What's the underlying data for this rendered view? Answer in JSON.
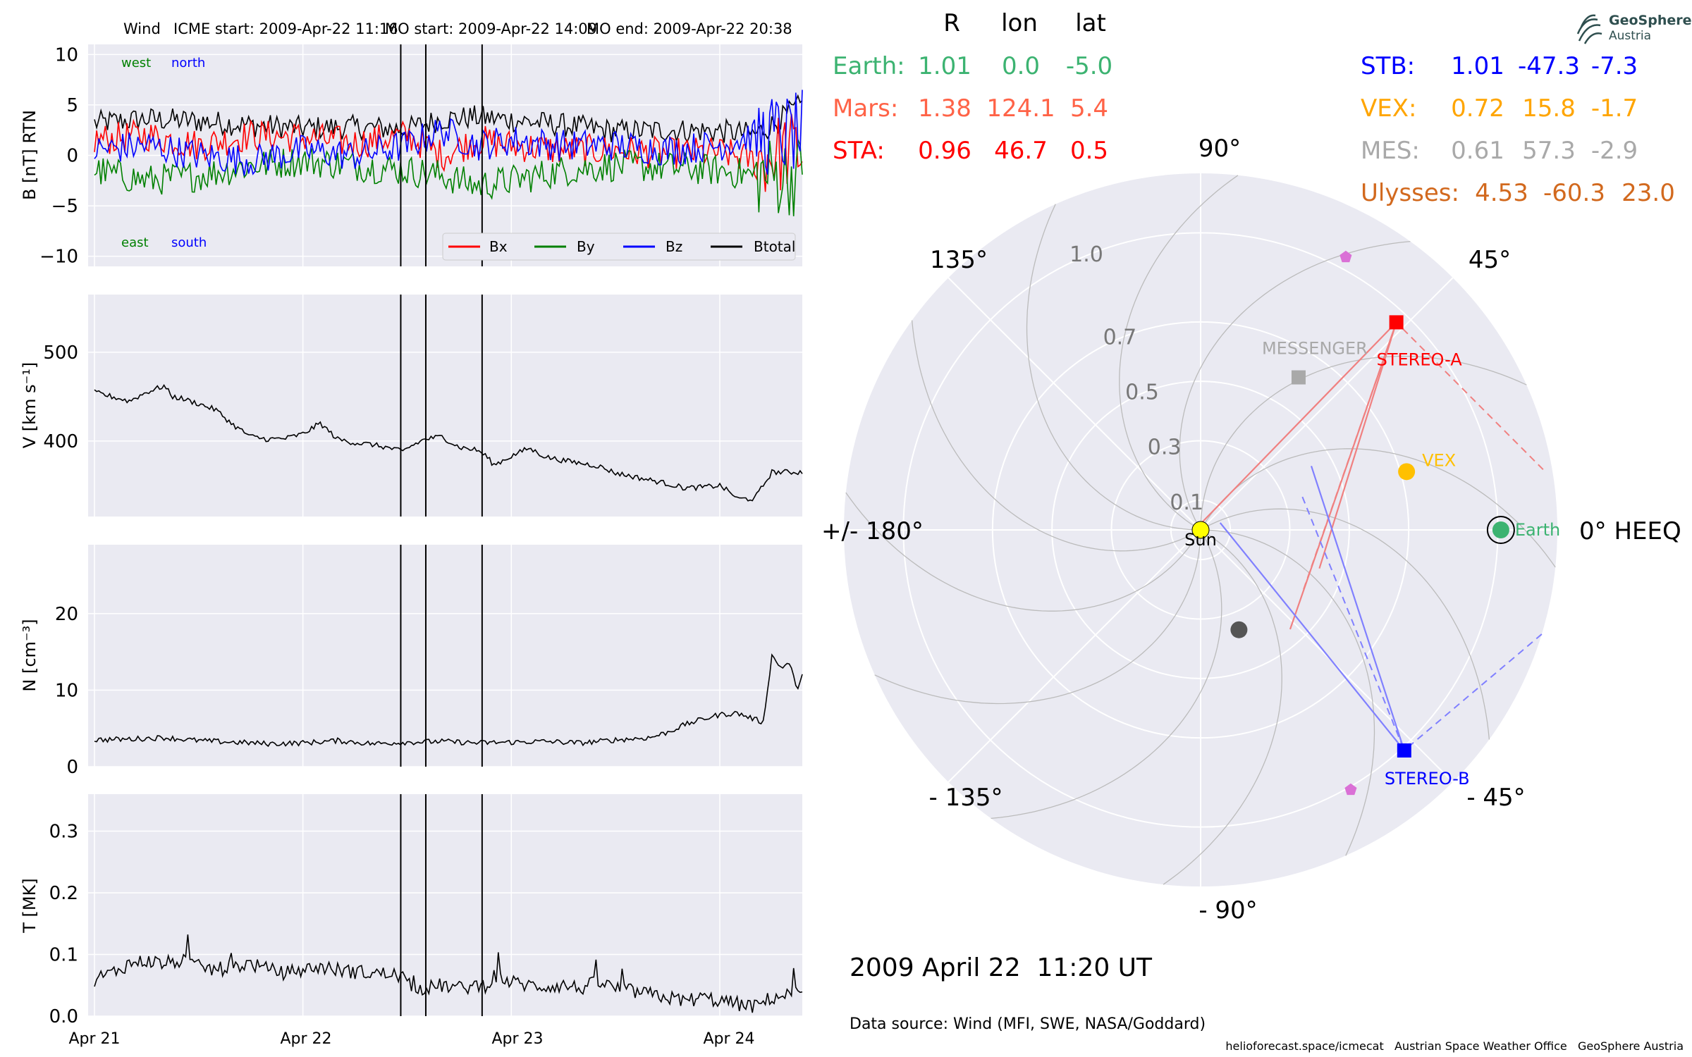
{
  "title": {
    "spacecraft": "Wind",
    "icme_start": "ICME start: 2009-Apr-22 11:16",
    "mo_start": "MO start: 2009-Apr-22 14:09",
    "mo_end": "MO end: 2009-Apr-22 20:38"
  },
  "logo": {
    "line1": "GeoSphere",
    "line2": "Austria",
    "icon": "geosphere-logo-icon"
  },
  "timestamp": "2009 April 22  11:20 UT",
  "data_source": "Data source: Wind (MFI, SWE, NASA/Goddard)",
  "credits": "helioforecast.space/icmecat   Austrian Space Weather Office   GeoSphere Austria",
  "position_table": {
    "headers": [
      "R",
      "lon",
      "lat"
    ],
    "left_rows": [
      {
        "name": "Earth:",
        "R": "1.01",
        "lon": "0.0",
        "lat": "-5.0",
        "color": "#3cb371"
      },
      {
        "name": "Mars:",
        "R": "1.38",
        "lon": "124.1",
        "lat": "5.4",
        "color": "#ff6347"
      },
      {
        "name": "STA:",
        "R": "0.96",
        "lon": "46.7",
        "lat": "0.5",
        "color": "#ff0000"
      }
    ],
    "right_rows": [
      {
        "name": "STB:",
        "R": "1.01",
        "lon": "-47.3",
        "lat": "-7.3",
        "color": "#0000ff"
      },
      {
        "name": "VEX:",
        "R": "0.72",
        "lon": "15.8",
        "lat": "-1.7",
        "color": "#ffa500"
      },
      {
        "name": "MES:",
        "R": "0.61",
        "lon": "57.3",
        "lat": "-2.9",
        "color": "#a9a9a9"
      },
      {
        "name": "Ulysses:",
        "R": "4.53",
        "lon": "-60.3",
        "lat": "23.0",
        "color": "#d2691e"
      }
    ]
  },
  "chart_data": [
    {
      "type": "line",
      "panel": "B",
      "ylabel": "B [nT] RTN",
      "ylim": [
        -11,
        11
      ],
      "yticks": [
        "10",
        "5",
        "0",
        "−5",
        "−10"
      ],
      "ytick_values": [
        10,
        5,
        0,
        -5,
        -10
      ],
      "x_ticks": [
        "Apr 21",
        "Apr 22",
        "Apr 23",
        "Apr 24"
      ],
      "x_range": [
        "2009-04-21 00:00",
        "2009-04-24 09:30"
      ],
      "event_lines": [
        "2009-04-22 11:16",
        "2009-04-22 14:09",
        "2009-04-22 20:38"
      ],
      "annotations": {
        "west": {
          "text": "west",
          "color": "#008000"
        },
        "north": {
          "text": "north",
          "color": "#0000ff"
        },
        "east": {
          "text": "east",
          "color": "#008000"
        },
        "south": {
          "text": "south",
          "color": "#0000ff"
        }
      },
      "legend": [
        {
          "name": "Bx",
          "color": "#ff0000"
        },
        {
          "name": "By",
          "color": "#008000"
        },
        {
          "name": "Bz",
          "color": "#0000ff"
        },
        {
          "name": "Btotal",
          "color": "#000000"
        }
      ],
      "series": [
        {
          "name": "Btotal",
          "color": "#000000",
          "x_hours": [
            0,
            6,
            12,
            18,
            24,
            30,
            36,
            40,
            44,
            48,
            54,
            60,
            66,
            72,
            76,
            78,
            80,
            82,
            84,
            86,
            88,
            90,
            92,
            93.5
          ],
          "values": [
            3.2,
            3.6,
            3.4,
            3.0,
            2.7,
            2.8,
            2.6,
            3.6,
            3.8,
            3.5,
            3.0,
            2.4,
            2.5,
            2.4,
            2.1,
            3.0,
            4.2,
            5.3,
            5.5,
            5.0,
            5.4,
            5.1,
            5.0,
            4.6
          ]
        },
        {
          "name": "Bx",
          "color": "#ff0000",
          "x_hours": [
            0,
            6,
            12,
            18,
            24,
            30,
            36,
            40,
            44,
            48,
            54,
            60,
            66,
            72,
            76,
            80,
            84,
            88,
            92,
            93.5
          ],
          "values": [
            1.5,
            2.0,
            1.0,
            2.0,
            1.8,
            1.2,
            2.0,
            0.0,
            1.5,
            1.0,
            0.5,
            0.5,
            0.2,
            0.3,
            -0.5,
            0.5,
            0.0,
            1.0,
            -1.0,
            -4.0
          ]
        },
        {
          "name": "By",
          "color": "#008000",
          "x_hours": [
            0,
            6,
            12,
            18,
            24,
            30,
            36,
            40,
            44,
            48,
            54,
            60,
            66,
            72,
            76,
            80,
            84,
            88,
            92,
            93.5
          ],
          "values": [
            -1.5,
            -2.5,
            -2.0,
            -1.0,
            -0.5,
            -1.0,
            -1.5,
            -2.0,
            -3.0,
            -2.5,
            -1.5,
            -1.0,
            -1.2,
            -1.5,
            -2.0,
            -2.0,
            -1.5,
            -2.0,
            -1.0,
            -1.5
          ]
        },
        {
          "name": "Bz",
          "color": "#0000ff",
          "x_hours": [
            0,
            6,
            12,
            18,
            24,
            30,
            36,
            40,
            44,
            48,
            54,
            60,
            66,
            72,
            76,
            80,
            84,
            88,
            92,
            93.5
          ],
          "values": [
            0.5,
            1.0,
            0.0,
            -0.5,
            0.5,
            0.0,
            1.0,
            2.5,
            1.0,
            1.5,
            1.0,
            1.0,
            0.5,
            1.0,
            2.0,
            2.0,
            3.0,
            2.0,
            4.0,
            3.0
          ]
        }
      ]
    },
    {
      "type": "line",
      "panel": "V",
      "ylabel": "V [km s⁻¹]",
      "ylim": [
        315,
        565
      ],
      "yticks": [
        "500",
        "400"
      ],
      "ytick_values": [
        500,
        400
      ],
      "x_ticks": [
        "Apr 21",
        "Apr 22",
        "Apr 23",
        "Apr 24"
      ],
      "series": [
        {
          "name": "V",
          "color": "#000000",
          "x_hours": [
            0,
            2,
            4,
            6,
            8,
            9,
            10,
            12,
            14,
            16,
            18,
            20,
            22,
            24,
            26,
            28,
            30,
            32,
            34,
            35.5,
            36,
            38,
            40,
            42,
            44,
            45,
            46,
            48,
            50,
            52,
            54,
            56,
            58,
            60,
            62,
            64,
            66,
            68,
            70,
            72,
            73.5,
            74,
            76,
            78,
            80,
            82,
            84,
            86,
            88,
            90,
            92,
            93.5
          ],
          "values": [
            455,
            450,
            445,
            455,
            462,
            450,
            448,
            442,
            435,
            418,
            405,
            402,
            403,
            408,
            420,
            402,
            398,
            396,
            392,
            388,
            392,
            402,
            405,
            393,
            390,
            384,
            373,
            383,
            392,
            382,
            378,
            375,
            372,
            364,
            360,
            356,
            352,
            347,
            348,
            350,
            340,
            335,
            335,
            365,
            365,
            365,
            363,
            362,
            360,
            358,
            360,
            370
          ]
        }
      ]
    },
    {
      "type": "line",
      "panel": "N",
      "ylabel": "N [cm⁻³]",
      "ylim": [
        0,
        29
      ],
      "yticks": [
        "20",
        "10",
        "0"
      ],
      "ytick_values": [
        20,
        10,
        0
      ],
      "x_ticks": [
        "Apr 21",
        "Apr 22",
        "Apr 23",
        "Apr 24"
      ],
      "series": [
        {
          "name": "N",
          "color": "#000000",
          "x_hours": [
            0,
            4,
            8,
            12,
            16,
            20,
            24,
            28,
            32,
            36,
            40,
            44,
            48,
            52,
            56,
            60,
            64,
            66,
            68,
            70,
            72,
            74,
            76,
            77,
            78,
            79,
            80,
            81,
            82,
            84,
            86,
            88,
            90,
            91.5,
            92,
            93,
            93.5
          ],
          "values": [
            3.5,
            3.6,
            3.8,
            3.4,
            3.2,
            3.0,
            3.1,
            3.4,
            3.0,
            3.2,
            3.3,
            3.1,
            3.2,
            3.3,
            3.1,
            3.5,
            3.8,
            4.5,
            5.5,
            6.2,
            6.8,
            7.0,
            6.2,
            5.8,
            14.5,
            13.0,
            13.5,
            10.0,
            13.5,
            12.5,
            11.0,
            12.0,
            16.0,
            16.5,
            19.0,
            17.5,
            14.0
          ]
        }
      ]
    },
    {
      "type": "line",
      "panel": "T",
      "ylabel": "T [MK]",
      "ylim": [
        0,
        0.36
      ],
      "yticks": [
        "0.3",
        "0.2",
        "0.1",
        "0.0"
      ],
      "ytick_values": [
        0.3,
        0.2,
        0.1,
        0.0
      ],
      "x_ticks": [
        "Apr 21",
        "Apr 22",
        "Apr 23",
        "Apr 24"
      ],
      "series": [
        {
          "name": "T",
          "color": "#000000",
          "x_hours": [
            0,
            2,
            4,
            6,
            8,
            10,
            12,
            14,
            16,
            18,
            20,
            22,
            24,
            26,
            28,
            30,
            32,
            34,
            35.5,
            36,
            38,
            40,
            42,
            44,
            45,
            46,
            48,
            50,
            52,
            54,
            56,
            58,
            60,
            62,
            64,
            66,
            68,
            70,
            72,
            74,
            76,
            78,
            80,
            82,
            84,
            86,
            88,
            90,
            92,
            93.5
          ],
          "values": [
            0.06,
            0.07,
            0.085,
            0.09,
            0.085,
            0.09,
            0.08,
            0.075,
            0.08,
            0.085,
            0.075,
            0.07,
            0.075,
            0.08,
            0.075,
            0.072,
            0.07,
            0.068,
            0.065,
            0.05,
            0.045,
            0.05,
            0.045,
            0.05,
            0.05,
            0.065,
            0.055,
            0.05,
            0.048,
            0.05,
            0.045,
            0.055,
            0.045,
            0.04,
            0.035,
            0.03,
            0.025,
            0.03,
            0.025,
            0.02,
            0.015,
            0.03,
            0.035,
            0.04,
            0.045,
            0.05,
            0.045,
            0.05,
            0.05,
            0.045
          ]
        }
      ]
    },
    {
      "type": "scatter",
      "panel": "polar-position",
      "projection": "polar",
      "frame": "HEEQ",
      "r_ticks": [
        "0.1",
        "0.3",
        "0.5",
        "0.7",
        "1.0"
      ],
      "r_tick_values": [
        0.1,
        0.3,
        0.5,
        0.7,
        1.0
      ],
      "rmax": 1.2,
      "angle_labels": [
        {
          "text": "0° HEEQ",
          "deg": 0
        },
        {
          "text": "45°",
          "deg": 45
        },
        {
          "text": "90°",
          "deg": 90
        },
        {
          "text": "135°",
          "deg": 135
        },
        {
          "text": "+/- 180°",
          "deg": 180
        },
        {
          "text": "- 135°",
          "deg": -135
        },
        {
          "text": "- 90°",
          "deg": -90
        },
        {
          "text": "- 45°",
          "deg": -45
        }
      ],
      "points": [
        {
          "name": "Sun",
          "label": "Sun",
          "r": 0.0,
          "lon": 0.0,
          "color": "#ffff00",
          "marker": "circle"
        },
        {
          "name": "Earth",
          "label": "Earth",
          "r": 1.01,
          "lon": 0.0,
          "color": "#3cb371",
          "marker": "circle-ring"
        },
        {
          "name": "STEREO-A",
          "label": "STEREO-A",
          "r": 0.96,
          "lon": 46.7,
          "color": "#ff0000",
          "marker": "square"
        },
        {
          "name": "STEREO-B",
          "label": "STEREO-B",
          "r": 1.01,
          "lon": -47.3,
          "color": "#0000ff",
          "marker": "square"
        },
        {
          "name": "VEX",
          "label": "VEX",
          "r": 0.72,
          "lon": 15.8,
          "color": "#ffc000",
          "marker": "circle"
        },
        {
          "name": "MESSENGER",
          "label": "MESSENGER",
          "r": 0.61,
          "lon": 57.3,
          "color": "#a9a9a9",
          "marker": "square"
        },
        {
          "name": "Mercury",
          "label": "",
          "r": 0.36,
          "lon": -69.0,
          "color": "#555555",
          "marker": "circle"
        },
        {
          "name": "Solar Orbiter",
          "label": "",
          "r": 1.04,
          "lon": 62.0,
          "color": "#da70d6",
          "marker": "pentagon"
        },
        {
          "name": "Parker Solar Probe",
          "label": "",
          "r": 1.01,
          "lon": -60.0,
          "color": "#da70d6",
          "marker": "pentagon"
        }
      ]
    }
  ]
}
